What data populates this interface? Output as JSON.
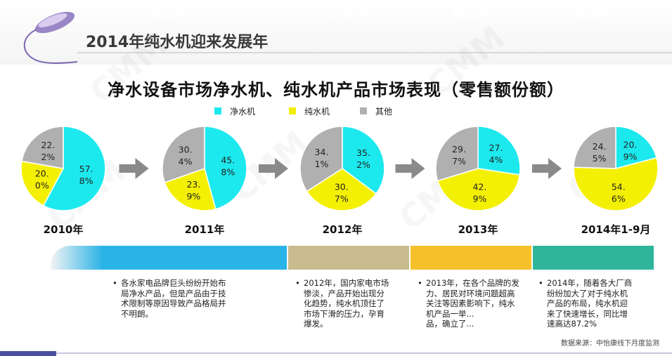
{
  "page_title": "2014年纯水机迎来发展年",
  "colors": {
    "jingshui": "#1ce9ee",
    "chunshui": "#f4f004",
    "other": "#b0b0b0",
    "arrow": "#8a8a8a",
    "phase_blue": "#2ab3e6",
    "phase_tan": "#c8bb8e",
    "phase_gold": "#f6c02a",
    "phase_green": "#2fb59a"
  },
  "chart_data": {
    "type": "pie",
    "title": "净水设备市场净水机、纯水机产品市场表现（零售额份额）",
    "legend": [
      "净水机",
      "纯水机",
      "其他"
    ],
    "legend_position": "top",
    "charts": [
      {
        "period": "2010年",
        "values": [
          57.8,
          20.0,
          22.2
        ],
        "labels": [
          [
            "57.",
            "8%"
          ],
          [
            "20.",
            "0%"
          ],
          [
            "22.",
            "2%"
          ]
        ]
      },
      {
        "period": "2011年",
        "values": [
          45.8,
          23.9,
          30.4
        ],
        "labels": [
          [
            "45.",
            "8%"
          ],
          [
            "23.",
            "9%"
          ],
          [
            "30.",
            "4%"
          ]
        ]
      },
      {
        "period": "2012年",
        "values": [
          35.2,
          30.7,
          34.1
        ],
        "labels": [
          [
            "35.",
            "2%"
          ],
          [
            "30.",
            "7%"
          ],
          [
            "34.",
            "1%"
          ]
        ]
      },
      {
        "period": "2013年",
        "values": [
          27.4,
          42.9,
          29.7
        ],
        "labels": [
          [
            "27.",
            "4%"
          ],
          [
            "42.",
            "9%"
          ],
          [
            "29.",
            "7%"
          ]
        ]
      },
      {
        "period": "2014年1-9月",
        "values": [
          20.9,
          54.6,
          24.5
        ],
        "labels": [
          [
            "20.",
            "9%"
          ],
          [
            "54.",
            "6%"
          ],
          [
            "24.",
            "5%"
          ]
        ]
      }
    ]
  },
  "phases": [
    {
      "label": "争议年",
      "desc": [
        "各水家电品牌巨头纷纷开始布",
        "局净水产品，但是产品由于技",
        "术限制等原因导致产品格局并",
        "不明朗。"
      ]
    },
    {
      "label": "孕育年",
      "desc": [
        "2012年，国内家电市场",
        "惨淡，产品开始出现分",
        "化趋势，纯水机顶住了",
        "市场下滑的压力，孕育",
        "爆发。"
      ]
    },
    {
      "label": "确立年",
      "desc": [
        "2013年，在各个品牌的发",
        "力、居民对环境问题超高",
        "关注等因素影响下，纯水",
        "机产品一举...",
        "品，确立了..."
      ]
    },
    {
      "label": "发展年",
      "desc": [
        "2014年，随着各大厂商",
        "纷纷加大了对于纯水机",
        "产品的布局，纯水机迎",
        "来了快速增长，同比增",
        "速高达87.2%"
      ]
    }
  ],
  "watermark": "CMM",
  "source": "数据来源：中怡康线下月度监测"
}
